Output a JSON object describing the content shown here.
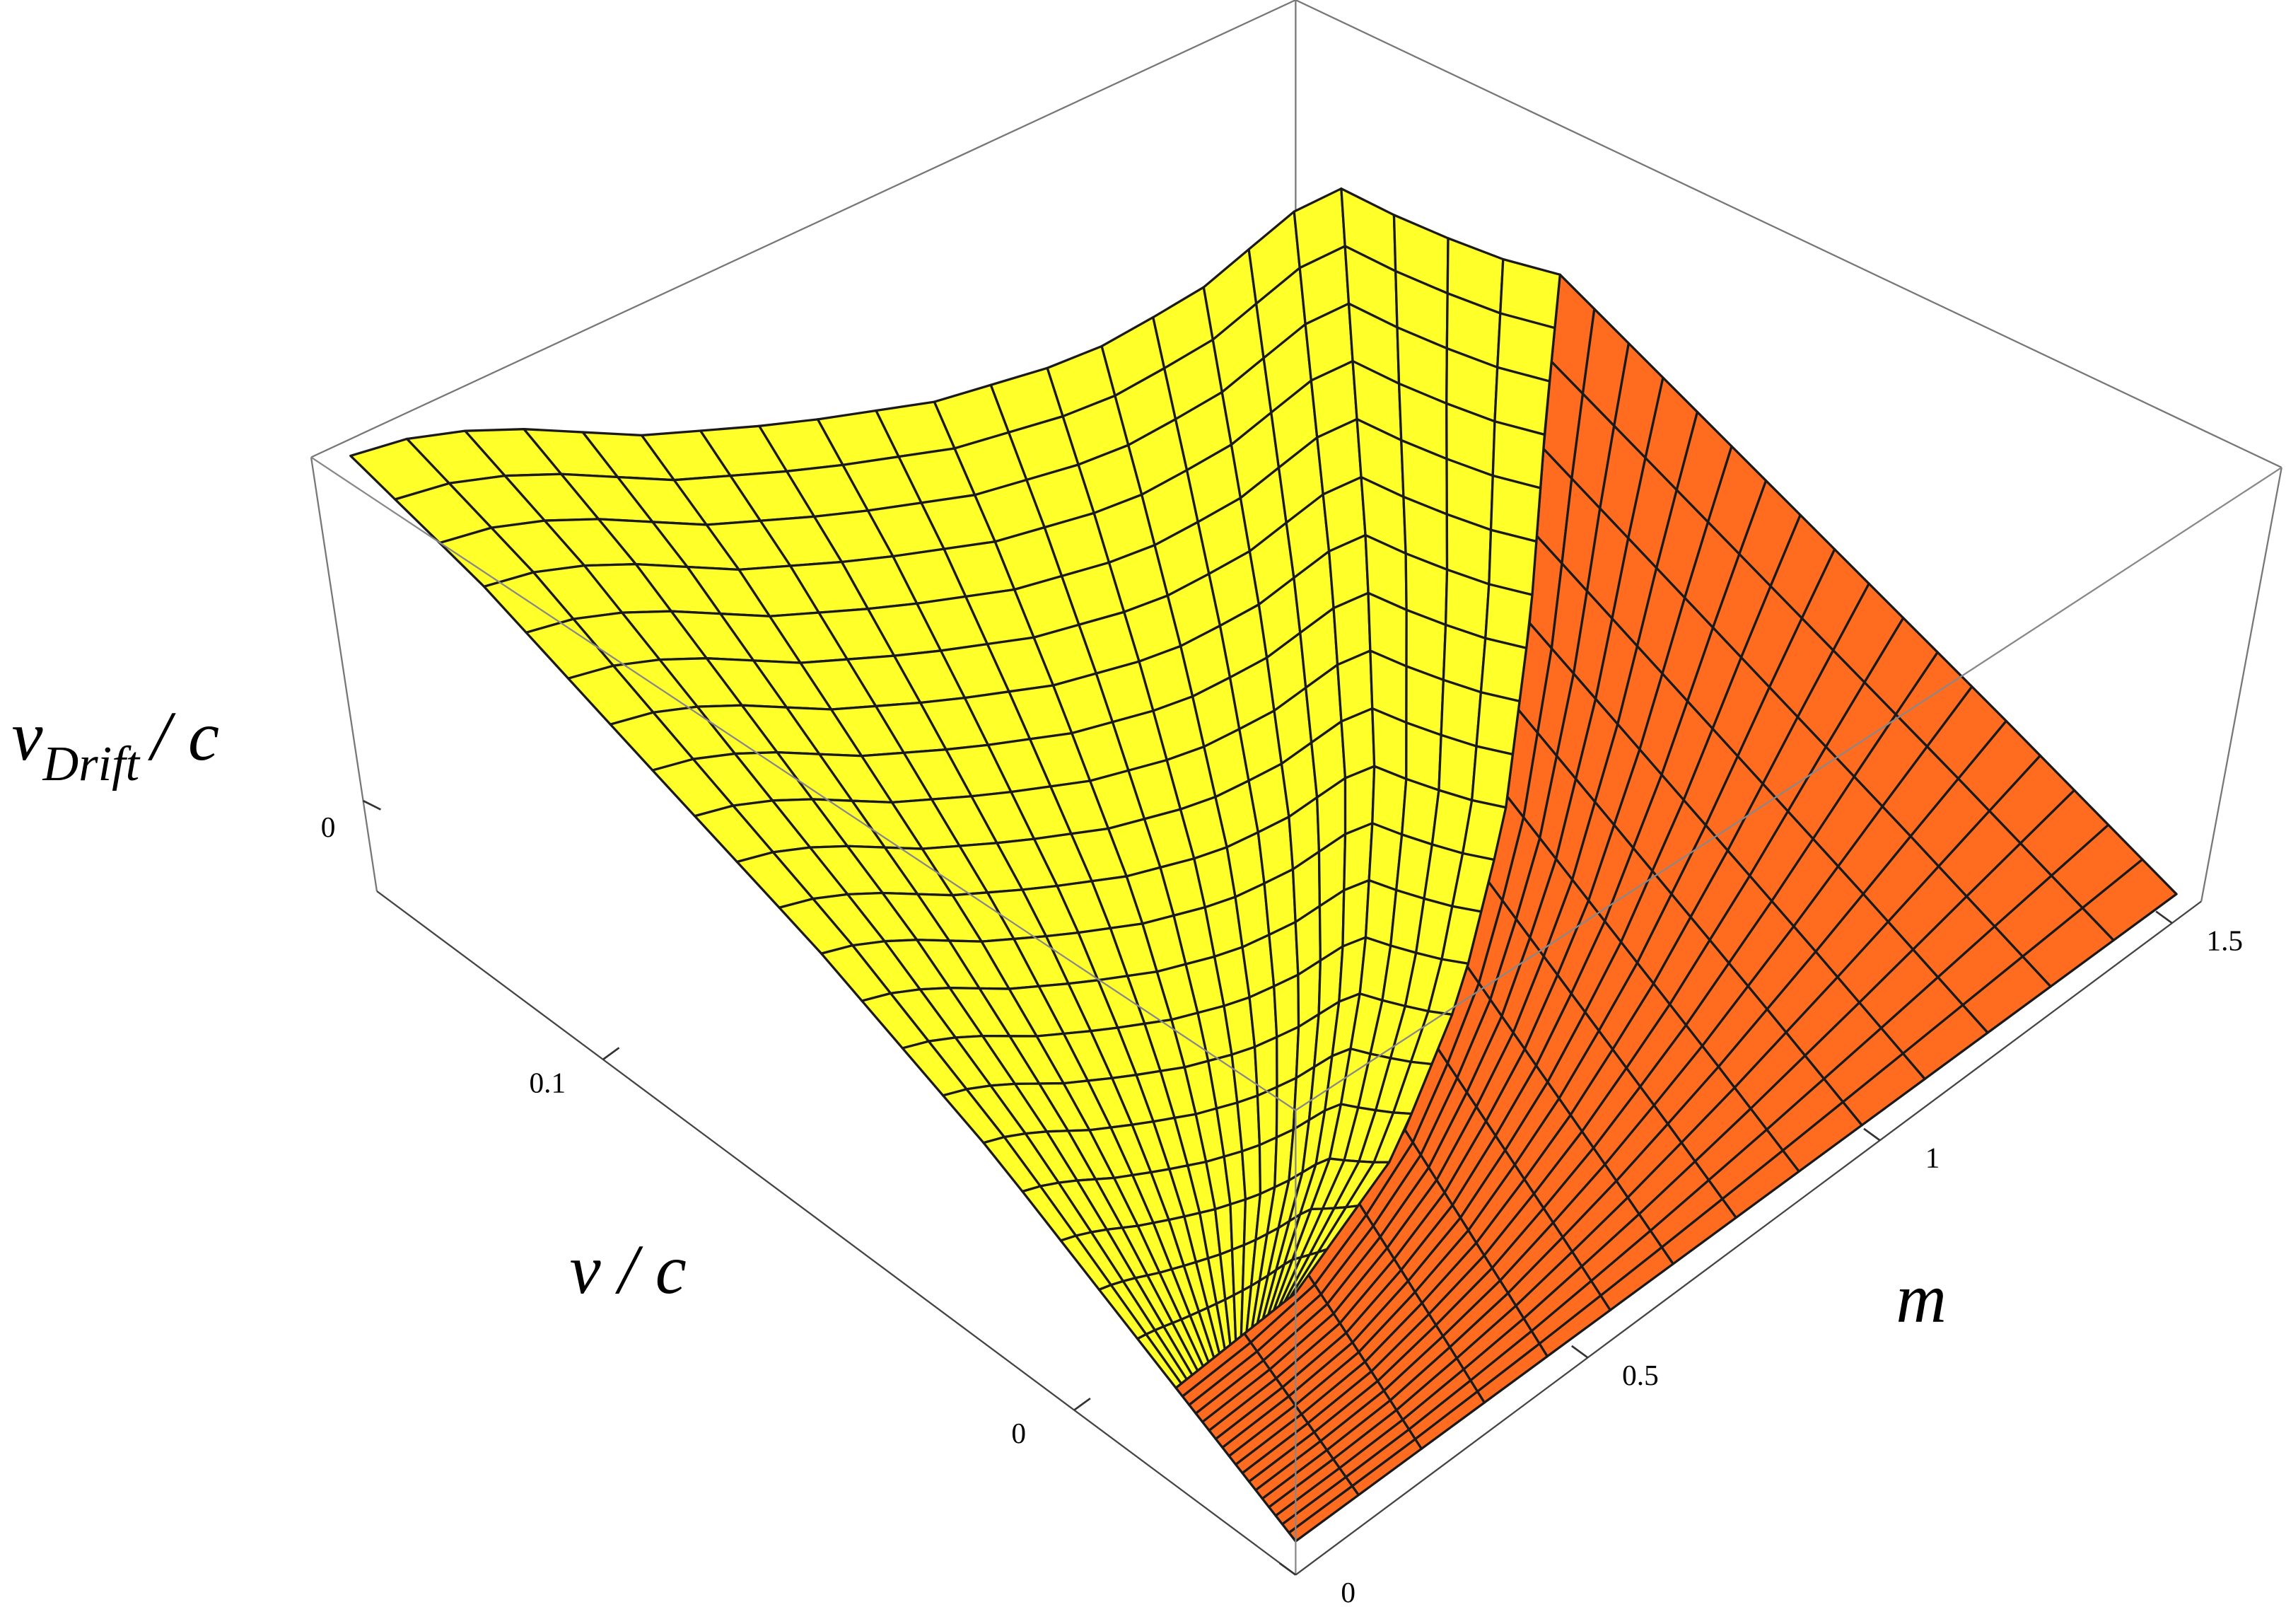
{
  "chart_data": {
    "type": "surface3d",
    "xlabel": "m",
    "ylabel": "v / c",
    "zlabel": {
      "base": "v",
      "sub": "Drift",
      "tail": "/ c"
    },
    "xlim": [
      0,
      1.55
    ],
    "xticks": [
      0,
      0.5,
      1,
      1.5
    ],
    "ylim": [
      -0.047,
      0.148
    ],
    "yticks": [
      0,
      0.1
    ],
    "zlim": [
      -0.05,
      0.19
    ],
    "zticks": [
      0
    ],
    "colors": {
      "upper": "#ffff2a",
      "lower": "#ff6b1f"
    }
  }
}
